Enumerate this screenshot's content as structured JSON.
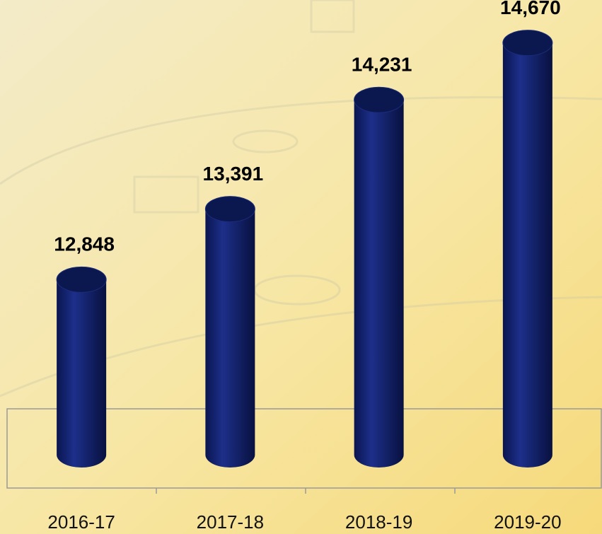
{
  "chart_data": {
    "type": "bar",
    "categories": [
      "2016-17",
      "2017-18",
      "2018-19",
      "2019-20"
    ],
    "values": [
      12848,
      13391,
      14231,
      14670
    ],
    "value_labels": [
      "12,848",
      "13,391",
      "14,231",
      "14,670"
    ],
    "color": "#0d1a5c",
    "ylim": [
      11500,
      15000
    ]
  }
}
